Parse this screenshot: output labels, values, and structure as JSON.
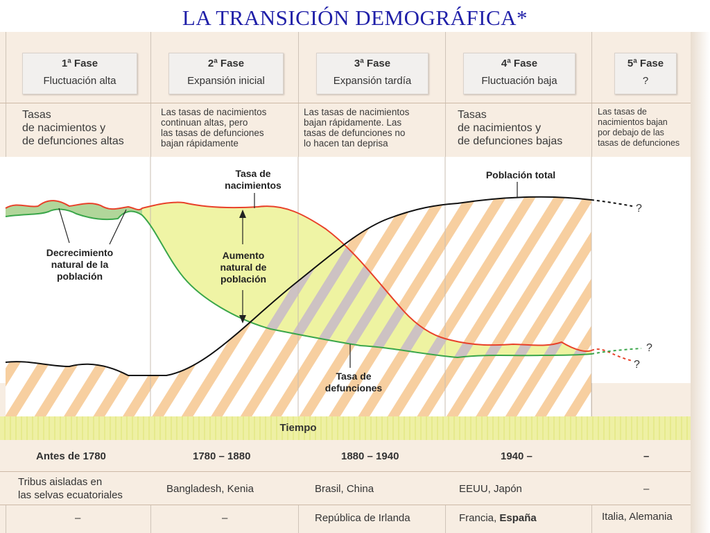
{
  "title": "LA TRANSICIÓN DEMOGRÁFICA*",
  "phases": [
    {
      "name": "1ª Fase",
      "sub": "Fluctuación alta"
    },
    {
      "name": "2ª Fase",
      "sub": "Expansión inicial"
    },
    {
      "name": "3ª Fase",
      "sub": "Expansión tardía"
    },
    {
      "name": "4ª Fase",
      "sub": "Fluctuación baja"
    },
    {
      "name": "5ª Fase",
      "sub": "?"
    }
  ],
  "descriptions": [
    [
      "Tasas",
      "de nacimientos y",
      "de defunciones altas"
    ],
    [
      "Las tasas de nacimientos",
      "continuan altas, pero",
      "las tasas de defunciones",
      "bajan rápidamente"
    ],
    [
      "Las tasas de nacimientos",
      "bajan rápidamente. Las",
      "tasas de defunciones no",
      "lo hacen tan deprisa"
    ],
    [
      "Tasas",
      "de nacimientos y",
      "de defunciones bajas"
    ],
    [
      "Las tasas de",
      "nacimientos bajan",
      "por debajo de las",
      "tasas de defunciones"
    ]
  ],
  "annotations": {
    "tasa_nacimientos": [
      "Tasa de",
      "nacimientos"
    ],
    "decrecimiento": [
      "Decrecimiento",
      "natural de la",
      "población"
    ],
    "aumento": [
      "Aumento",
      "natural de",
      "población"
    ],
    "tasa_defunciones": [
      "Tasa de",
      "defunciones"
    ],
    "poblacion_total": "Población total",
    "question": "?"
  },
  "time_label": "Tiempo",
  "periods": [
    "Antes de 1780",
    "1780 – 1880",
    "1880 – 1940",
    "1940 –",
    "–"
  ],
  "examples_row1": [
    [
      "Tribus aisladas en",
      "las selvas ecuatoriales"
    ],
    [
      "Bangladesh, Kenia"
    ],
    [
      "Brasil, China"
    ],
    [
      "EEUU, Japón"
    ],
    [
      "–"
    ]
  ],
  "examples_row2": [
    {
      "text": "–"
    },
    {
      "text": "–"
    },
    {
      "text": "República de Irlanda"
    },
    {
      "text": "Francia, ",
      "bold": "España"
    },
    {
      "text": "Italia, Alemania"
    }
  ],
  "colors": {
    "birth": "#e8412a",
    "death": "#3aa64a",
    "population": "#111111",
    "fill": "#eef3a0",
    "hatch": "#f5c898",
    "title": "#1f1fa8"
  }
}
